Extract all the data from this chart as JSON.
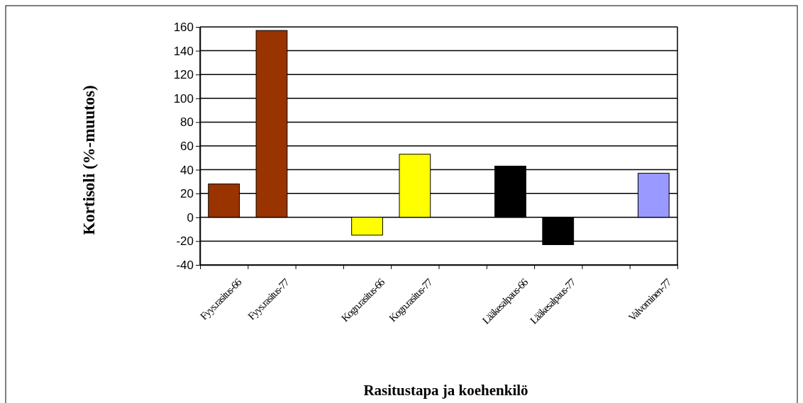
{
  "chart_data": {
    "type": "bar",
    "xlabel": "Rasitustapa ja koehenkilö",
    "ylabel": "Kortisoli (%-muutos)",
    "categories": [
      "Fyys.rasitus-66",
      "Fyys.rasitus-77",
      null,
      "Kogn.rasitus-66",
      "Kogn.rasitus-77",
      null,
      "Lääkesalpaus-66",
      "Lääkesalpaus-77",
      null,
      "Valvominen-77"
    ],
    "values": [
      28,
      157,
      null,
      -15,
      53,
      null,
      43,
      -23,
      null,
      37
    ],
    "colors": [
      "#993300",
      "#993300",
      null,
      "#ffff00",
      "#ffff00",
      null,
      "#000000",
      "#000000",
      null,
      "#9999ff"
    ],
    "ylim": [
      -40,
      160
    ],
    "yticks": [
      -40,
      -20,
      0,
      20,
      40,
      60,
      80,
      100,
      120,
      140,
      160
    ],
    "grid": "y"
  }
}
